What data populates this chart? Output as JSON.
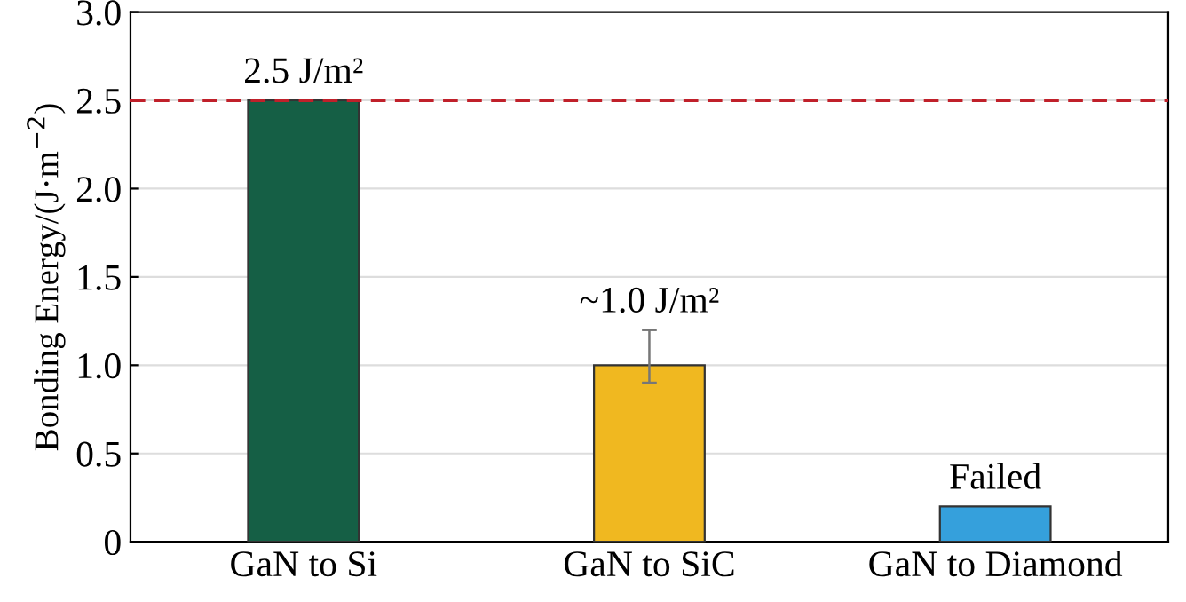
{
  "chart_data": {
    "type": "bar",
    "ylabel": "Bonding Energy/(J·m$^{−2}$)",
    "categories": [
      "GaN to Si",
      "GaN to SiC",
      "GaN to Diamond"
    ],
    "values": [
      2.5,
      1.0,
      0.2
    ],
    "colors": [
      "#155f45",
      "#f0b820",
      "#35a0dc"
    ],
    "errors": [
      null,
      [
        0.9,
        1.2
      ],
      null
    ],
    "ylim": [
      0,
      3
    ],
    "yticks": [
      0,
      {
        "value": 0.5,
        "label": "0.5"
      },
      {
        "value": 1,
        "label": "1.0"
      },
      {
        "value": 1.5,
        "label": "1.5"
      },
      {
        "value": 2,
        "label": "2.0"
      },
      {
        "value": 2.5,
        "label": "2.5"
      },
      {
        "value": 3,
        "label": "3.0"
      }
    ],
    "grid": "y",
    "ref_lines": [
      {
        "axis": "y",
        "value": 2.5,
        "color": "#c0202a",
        "line_style": "dashed"
      }
    ],
    "annotations": [
      {
        "text": "2.5 J/m²",
        "x": "GaN to Si",
        "y": 2.5
      },
      {
        "text": "~1.0 J/m²",
        "x": "GaN to SiC",
        "y": 1.2
      },
      {
        "text": "Failed",
        "x": "GaN to Diamond",
        "y": 0.2
      }
    ]
  }
}
